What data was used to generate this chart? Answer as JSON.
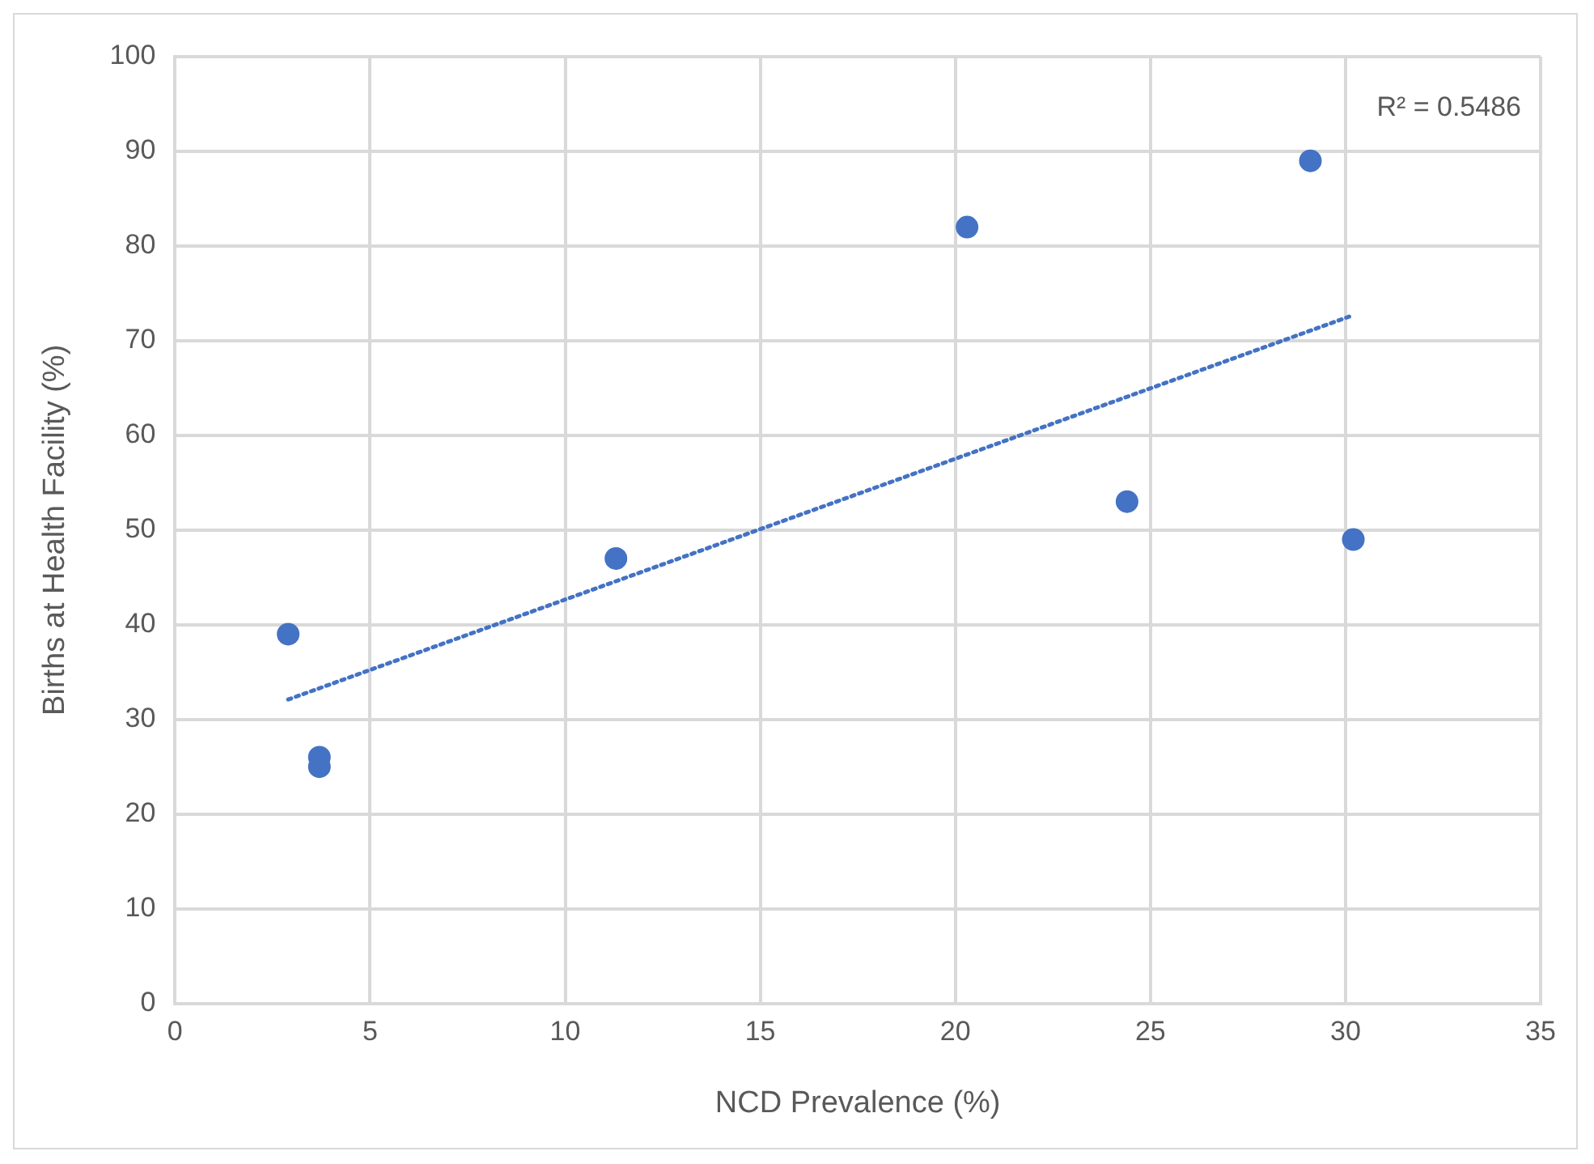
{
  "chart_data": {
    "type": "scatter",
    "xlabel": "NCD Prevalence (%)",
    "ylabel": "Births at Health Facility (%)",
    "annotations": [
      "R² = 0.5486"
    ],
    "xlim": [
      0,
      35
    ],
    "xticks": [
      0,
      5,
      10,
      15,
      20,
      25,
      30,
      35
    ],
    "ylim": [
      0,
      100
    ],
    "yticks": [
      0,
      10,
      20,
      30,
      40,
      50,
      60,
      70,
      80,
      90,
      100
    ],
    "grid": true,
    "legend": false,
    "series": [
      {
        "type": "scatter",
        "color": "#4472c4",
        "marker": "circle",
        "x": [
          2.9,
          3.7,
          3.7,
          11.3,
          20.3,
          24.4,
          29.1,
          30.2
        ],
        "values": [
          39,
          26,
          25,
          47,
          82,
          53,
          89,
          49
        ]
      },
      {
        "type": "line",
        "color": "#4472c4",
        "marker": "none",
        "line_style": "dotted",
        "x": [
          2.9,
          30.2
        ],
        "values": [
          32.1,
          72.7
        ]
      }
    ]
  }
}
